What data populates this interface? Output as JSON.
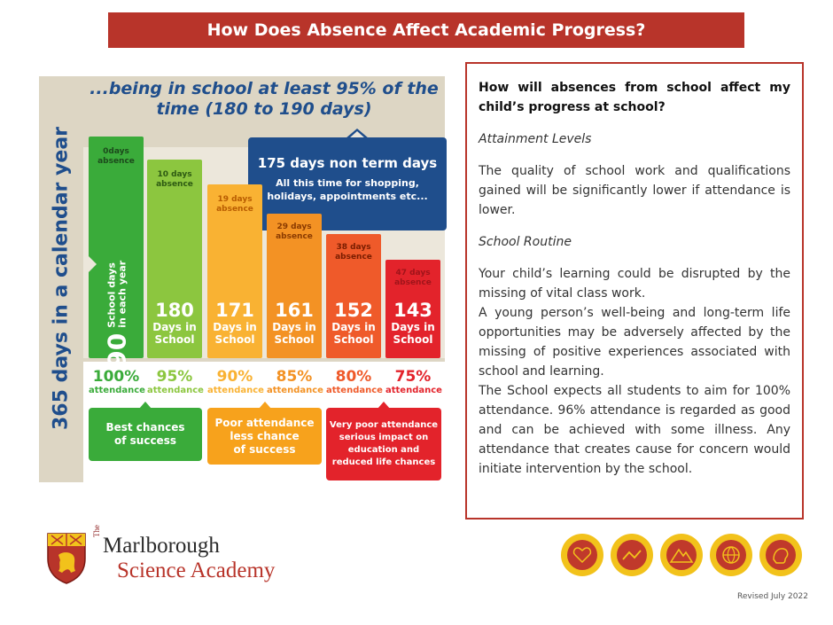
{
  "title": "How Does Absence Affect Academic Progress?",
  "infographic": {
    "side_label": "365 days in a calendar year",
    "headline_line1": "...being in school at least 95% of the",
    "headline_line2": "time (180 to 190 days)",
    "callout_title": "175 days non term days",
    "callout_body": "All this time for shopping, holidays, appointments etc...",
    "bars": [
      {
        "absence_num": "0days",
        "absence_word": "absence",
        "days": "190",
        "label_line1": "School days",
        "label_line2": "in each year",
        "color": "#3aab3a"
      },
      {
        "absence_num": "10 days",
        "absence_word": "absence",
        "days": "180",
        "label_line1": "Days in",
        "label_line2": "School",
        "color": "#8cc63f"
      },
      {
        "absence_num": "19 days",
        "absence_word": "absence",
        "days": "171",
        "label_line1": "Days in",
        "label_line2": "School",
        "color": "#f9b233"
      },
      {
        "absence_num": "29 days",
        "absence_word": "absence",
        "days": "161",
        "label_line1": "Days in",
        "label_line2": "School",
        "color": "#f39224"
      },
      {
        "absence_num": "38 days",
        "absence_word": "absence",
        "days": "152",
        "label_line1": "Days in",
        "label_line2": "School",
        "color": "#ef5a2a"
      },
      {
        "absence_num": "47 days",
        "absence_word": "absence",
        "days": "143",
        "label_line1": "Days in",
        "label_line2": "School",
        "color": "#e3232b"
      }
    ],
    "attendance": [
      {
        "pct": "100%",
        "word": "attendance",
        "color": "#3aab3a"
      },
      {
        "pct": "95%",
        "word": "attendance",
        "color": "#8cc63f"
      },
      {
        "pct": "90%",
        "word": "attendance",
        "color": "#f9b233"
      },
      {
        "pct": "85%",
        "word": "attendance",
        "color": "#f39224"
      },
      {
        "pct": "80%",
        "word": "attendance",
        "color": "#ef5a2a"
      },
      {
        "pct": "75%",
        "word": "attendance",
        "color": "#e3232b"
      }
    ],
    "outcomes": [
      {
        "line1": "Best chances",
        "line2": "of success",
        "line3": "",
        "line4": "",
        "color": "#3aab3a"
      },
      {
        "line1": "Poor attendance",
        "line2": "less chance",
        "line3": "of success",
        "line4": "",
        "color": "#f7a21c"
      },
      {
        "line1": "Very poor attendance",
        "line2": "serious impact on",
        "line3": "education and",
        "line4": "reduced life chances",
        "color": "#e3232b"
      }
    ]
  },
  "panel": {
    "question": "How will absences from school affect my child’s progress at school?",
    "heading1": "Attainment Levels",
    "para1": "The quality of school work and qualifications gained will be significantly lower if attendance is lower.",
    "heading2": "School Routine",
    "para2": "Your child’s learning could be disrupted by the missing of vital class work.",
    "para3": "A young person’s well-being and long-term life opportunities may be adversely affected by the missing of positive experiences associated with school and learning.",
    "para4": "The School expects all students to aim for 100% attendance. 96% attendance is regarded as good and can be achieved with some illness. Any attendance that creates cause for concern would initiate intervention by the school."
  },
  "logo": {
    "the": "The",
    "line1": "Marlborough",
    "line2": "Science Academy"
  },
  "badges": [
    "badge-1",
    "badge-2",
    "badge-3",
    "badge-4",
    "badge-5"
  ],
  "footer": {
    "revised": "Revised July 2022"
  },
  "colors": {
    "brand_red": "#b8342a",
    "brand_blue": "#1f4e8c",
    "band_beige": "#ddd6c4"
  }
}
